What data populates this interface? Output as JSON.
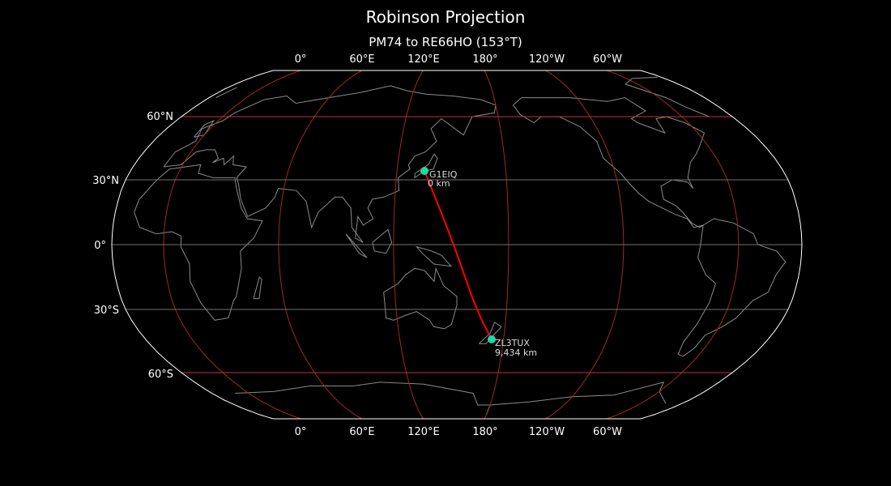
{
  "title": "Robinson Projection",
  "subtitle": "PM74 to RE66HO (153°T)",
  "lon_ticks": [
    "0°",
    "60°E",
    "120°E",
    "180°",
    "120°W",
    "60°W"
  ],
  "lat_ticks": [
    "60°N",
    "30°N",
    "0°",
    "30°S",
    "60°S"
  ],
  "path": {
    "start": {
      "call": "G1EIQ",
      "distance": "0 km"
    },
    "end": {
      "call": "ZL3TUX",
      "distance": "9,434 km"
    }
  },
  "colors": {
    "background": "#000000",
    "coastline": "#8a8a8a",
    "meridian": "#a02828",
    "parallel_major": "#c83030",
    "parallel_minor": "#707070",
    "path": "#ff0000",
    "station": "#20d8a0"
  }
}
